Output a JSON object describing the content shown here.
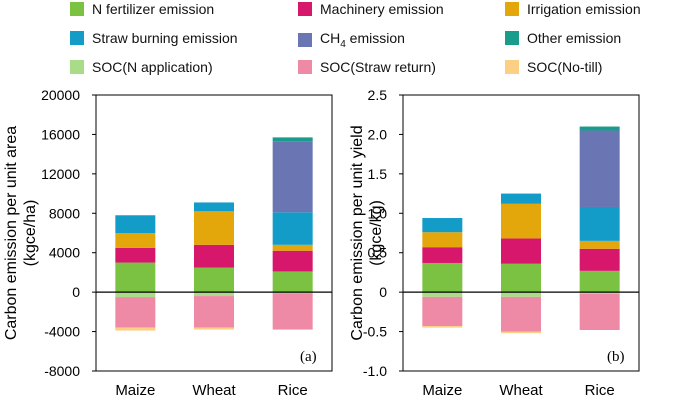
{
  "legend": [
    {
      "label": "N fertilizer emission",
      "color": "#7cc242"
    },
    {
      "label": "Machinery emission",
      "color": "#d6176b"
    },
    {
      "label": "Irrigation emission",
      "color": "#e3a70c"
    },
    {
      "label": "Straw burning emission",
      "color": "#149cc9"
    },
    {
      "label": "CH",
      "sub": "4",
      "suffix": " emission",
      "color": "#6976b3"
    },
    {
      "label": "Other emission",
      "color": "#1a9c8c"
    },
    {
      "label": "SOC(N application)",
      "color": "#a9dc88"
    },
    {
      "label": "SOC(Straw return)",
      "color": "#ef8aa6"
    },
    {
      "label": "SOC(No-till)",
      "color": "#fbcf84"
    }
  ],
  "chart_data": [
    {
      "type": "bar",
      "stacked": true,
      "panel_label": "(a)",
      "ylabel": "Carbon emission per unit area",
      "yunit": "(kgce/ha)",
      "ylim": [
        -8000,
        20000
      ],
      "yticks": [
        "-8000",
        "-4000",
        "0",
        "4000",
        "8000",
        "12000",
        "16000",
        "20000"
      ],
      "ytick_values": [
        -8000,
        -4000,
        0,
        4000,
        8000,
        12000,
        16000,
        20000
      ],
      "categories": [
        "Maize",
        "Wheat",
        "Rice"
      ],
      "series": [
        {
          "name": "N fertilizer emission",
          "values": [
            3000,
            2500,
            2100
          ]
        },
        {
          "name": "Machinery emission",
          "values": [
            1500,
            2300,
            2100
          ]
        },
        {
          "name": "Irrigation emission",
          "values": [
            1500,
            3400,
            600
          ]
        },
        {
          "name": "Straw burning emission",
          "values": [
            1800,
            900,
            3300
          ]
        },
        {
          "name": "CH4 emission",
          "values": [
            0,
            0,
            7200
          ]
        },
        {
          "name": "Other emission",
          "values": [
            0,
            0,
            400
          ]
        },
        {
          "name": "SOC(N application)",
          "values": [
            -500,
            -400,
            -100
          ]
        },
        {
          "name": "SOC(Straw return)",
          "values": [
            -3100,
            -3200,
            -3700
          ]
        },
        {
          "name": "SOC(No-till)",
          "values": [
            -300,
            -200,
            0
          ]
        }
      ]
    },
    {
      "type": "bar",
      "stacked": true,
      "panel_label": "(b)",
      "ylabel": "Carbon emission per unit yield",
      "yunit": "(kgce/kg)",
      "ylim": [
        -1.0,
        2.5
      ],
      "yticks": [
        "-1.0",
        "-0.5",
        "0",
        "0.5",
        "1.0",
        "1.5",
        "2.0",
        "2.5"
      ],
      "ytick_values": [
        -1.0,
        -0.5,
        0,
        0.5,
        1.0,
        1.5,
        2.0,
        2.5
      ],
      "categories": [
        "Maize",
        "Wheat",
        "Rice"
      ],
      "series": [
        {
          "name": "N fertilizer emission",
          "values": [
            0.37,
            0.36,
            0.27
          ]
        },
        {
          "name": "Machinery emission",
          "values": [
            0.2,
            0.32,
            0.28
          ]
        },
        {
          "name": "Irrigation emission",
          "values": [
            0.19,
            0.44,
            0.1
          ]
        },
        {
          "name": "Straw burning emission",
          "values": [
            0.18,
            0.13,
            0.43
          ]
        },
        {
          "name": "CH4 emission",
          "values": [
            0,
            0,
            0.97
          ]
        },
        {
          "name": "Other emission",
          "values": [
            0,
            0,
            0.05
          ]
        },
        {
          "name": "SOC(N application)",
          "values": [
            -0.06,
            -0.06,
            -0.02
          ]
        },
        {
          "name": "SOC(Straw return)",
          "values": [
            -0.37,
            -0.44,
            -0.46
          ]
        },
        {
          "name": "SOC(No-till)",
          "values": [
            -0.02,
            -0.02,
            0
          ]
        }
      ]
    }
  ]
}
